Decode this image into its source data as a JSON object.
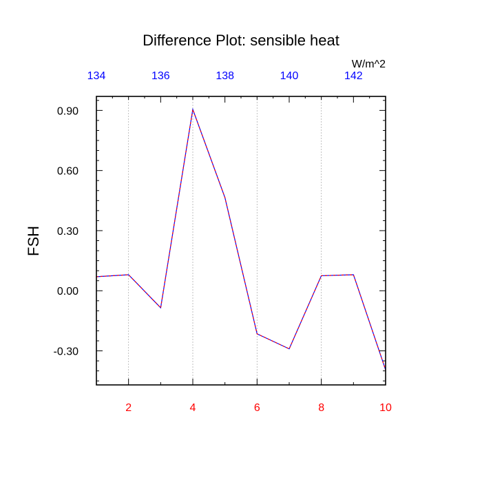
{
  "chart_data": {
    "type": "line",
    "title": "Difference Plot: sensible heat",
    "ylabel": "FSH",
    "units": "W/m^2",
    "x": [
      1,
      2,
      3,
      4,
      5,
      6,
      7,
      8,
      9,
      10
    ],
    "y": [
      0.07,
      0.08,
      -0.085,
      0.905,
      0.465,
      -0.215,
      -0.29,
      0.075,
      0.08,
      -0.395
    ],
    "xlim": [
      1,
      10
    ],
    "ylim": [
      -0.47,
      0.97
    ],
    "xticks": [
      2,
      4,
      6,
      8,
      10
    ],
    "xtick_labels": [
      "2",
      "4",
      "6",
      "8",
      "10"
    ],
    "yticks": [
      -0.3,
      0.0,
      0.3,
      0.6,
      0.9
    ],
    "ytick_labels": [
      "-0.30",
      "0.00",
      "0.30",
      "0.60",
      "0.90"
    ],
    "top_axis": {
      "xlim": [
        134,
        143
      ],
      "ticks": [
        134,
        136,
        138,
        140,
        142
      ],
      "tick_labels": [
        "134",
        "136",
        "138",
        "140",
        "142"
      ]
    },
    "grid_x": true,
    "grid_y": false,
    "colors": {
      "line_primary": "#0000ff",
      "line_secondary": "#ff0000",
      "bottom_tick_labels": "#ff0000",
      "top_tick_labels": "#0000ff",
      "grid": "#b0b0b0"
    }
  }
}
